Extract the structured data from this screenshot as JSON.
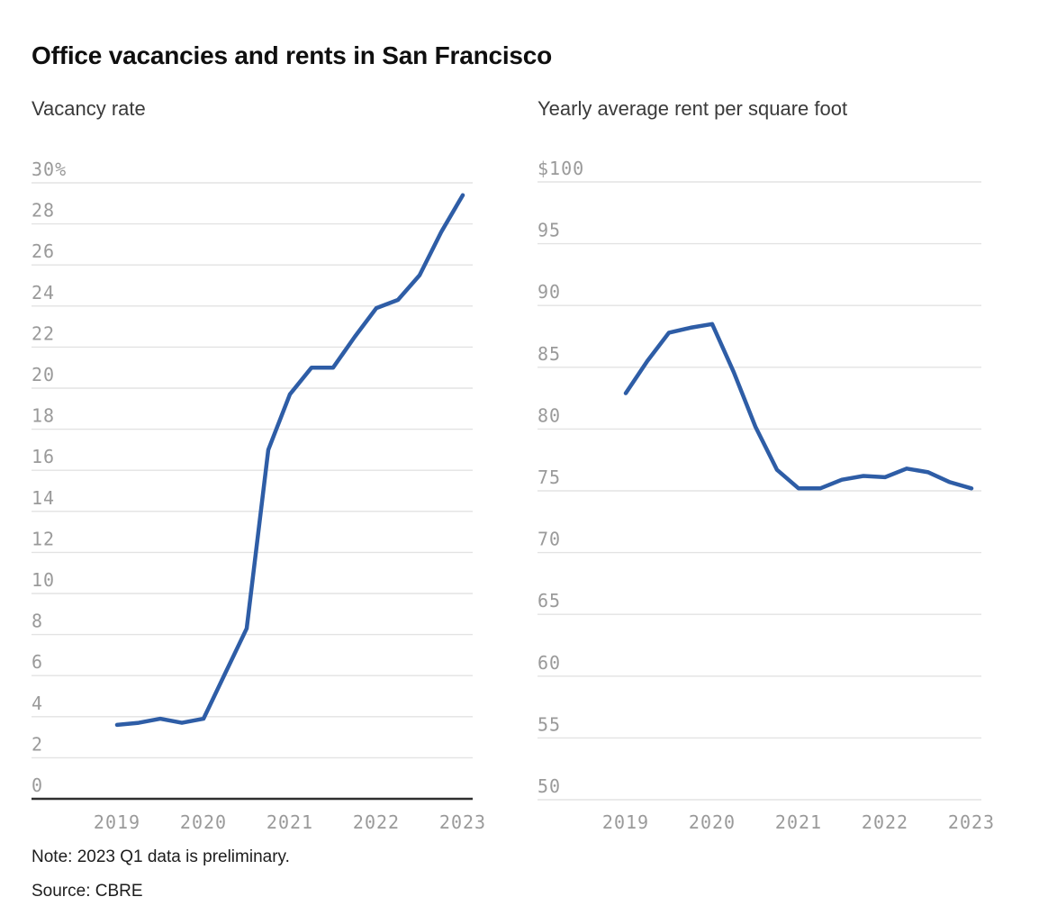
{
  "title": "Office vacancies and rents in San Francisco",
  "footer": {
    "note": "Note: 2023 Q1 data is preliminary.",
    "source": "Source: CBRE"
  },
  "colors": {
    "line": "#2e5da6",
    "grid": "#e3e3e3",
    "axis": "#2f2f2f",
    "tick": "#9a9a9a"
  },
  "chart_data": [
    {
      "type": "line",
      "title": "Vacancy rate",
      "series_name": "Office vacancy rate (%)",
      "xlim": [
        2019,
        2023
      ],
      "ylim": [
        0,
        30
      ],
      "grid": true,
      "x_ticks": [
        "2019",
        "2020",
        "2021",
        "2022",
        "2023"
      ],
      "y_ticks": [
        {
          "value": 30,
          "label": "30%"
        },
        {
          "value": 28,
          "label": "28"
        },
        {
          "value": 26,
          "label": "26"
        },
        {
          "value": 24,
          "label": "24"
        },
        {
          "value": 22,
          "label": "22"
        },
        {
          "value": 20,
          "label": "20"
        },
        {
          "value": 18,
          "label": "18"
        },
        {
          "value": 16,
          "label": "16"
        },
        {
          "value": 14,
          "label": "14"
        },
        {
          "value": 12,
          "label": "12"
        },
        {
          "value": 10,
          "label": "10"
        },
        {
          "value": 8,
          "label": "8"
        },
        {
          "value": 6,
          "label": "6"
        },
        {
          "value": 4,
          "label": "4"
        },
        {
          "value": 2,
          "label": "2"
        },
        {
          "value": 0,
          "label": "0"
        }
      ],
      "x": [
        2019,
        2019.25,
        2019.5,
        2019.75,
        2020,
        2020.25,
        2020.5,
        2020.75,
        2021,
        2021.25,
        2021.5,
        2021.75,
        2022,
        2022.25,
        2022.5,
        2022.75,
        2023
      ],
      "values": [
        3.6,
        3.7,
        3.9,
        3.7,
        3.9,
        6.1,
        8.3,
        17.0,
        19.7,
        21.0,
        21.0,
        22.5,
        23.9,
        24.3,
        25.5,
        27.6,
        29.4
      ]
    },
    {
      "type": "line",
      "title": "Yearly average rent per square foot",
      "series_name": "Average rent ($ per sq ft)",
      "xlim": [
        2019,
        2023
      ],
      "ylim": [
        50,
        100
      ],
      "grid": true,
      "x_ticks": [
        "2019",
        "2020",
        "2021",
        "2022",
        "2023"
      ],
      "y_ticks": [
        {
          "value": 100,
          "label": "$100"
        },
        {
          "value": 95,
          "label": "95"
        },
        {
          "value": 90,
          "label": "90"
        },
        {
          "value": 85,
          "label": "85"
        },
        {
          "value": 80,
          "label": "80"
        },
        {
          "value": 75,
          "label": "75"
        },
        {
          "value": 70,
          "label": "70"
        },
        {
          "value": 65,
          "label": "65"
        },
        {
          "value": 60,
          "label": "60"
        },
        {
          "value": 55,
          "label": "55"
        },
        {
          "value": 50,
          "label": "50"
        }
      ],
      "x": [
        2019,
        2019.25,
        2019.5,
        2019.75,
        2020,
        2020.25,
        2020.5,
        2020.75,
        2021,
        2021.25,
        2021.5,
        2021.75,
        2022,
        2022.25,
        2022.5,
        2022.75,
        2023
      ],
      "values": [
        82.9,
        85.5,
        87.8,
        88.2,
        88.5,
        84.6,
        80.2,
        76.7,
        75.2,
        75.2,
        75.9,
        76.2,
        76.1,
        76.8,
        76.5,
        75.7,
        75.2
      ]
    }
  ]
}
